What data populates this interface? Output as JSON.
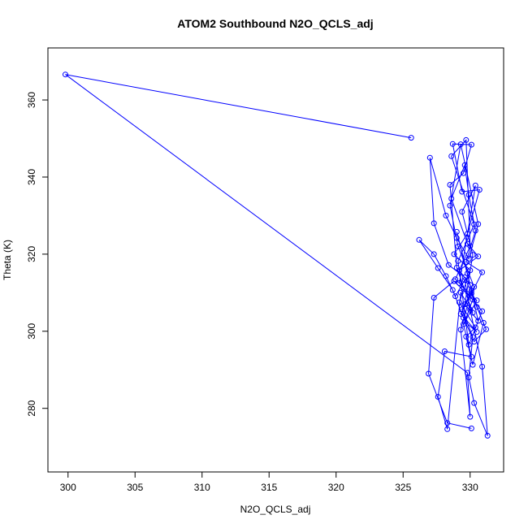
{
  "chart_data": {
    "type": "line",
    "title": "ATOM2 Southbound N2O_QCLS_adj",
    "xlabel": "N2O_QCLS_adj",
    "ylabel": "Theta (K)",
    "xlim": [
      298.5,
      332.5
    ],
    "ylim": [
      263.5,
      373.5
    ],
    "xticks": [
      300,
      305,
      310,
      315,
      320,
      325,
      330
    ],
    "yticks": [
      280,
      300,
      320,
      340,
      360
    ],
    "grid": false,
    "legend": "none",
    "series": [
      {
        "color": "#0000ff",
        "marker": "open-circle",
        "points": [
          [
            325.6,
            350.2
          ],
          [
            299.8,
            366.6
          ],
          [
            329.8,
            289.2
          ],
          [
            330.0,
            277.8
          ],
          [
            329.3,
            300.4
          ],
          [
            330.1,
            310.5
          ],
          [
            329.0,
            325.8
          ],
          [
            329.8,
            315.0
          ],
          [
            330.6,
            302.7
          ],
          [
            329.6,
            307.0
          ],
          [
            330.2,
            319.8
          ],
          [
            329.4,
            331.0
          ],
          [
            330.4,
            337.8
          ],
          [
            329.2,
            312.5
          ],
          [
            330.9,
            305.2
          ],
          [
            329.9,
            296.5
          ],
          [
            329.1,
            318.2
          ],
          [
            330.3,
            327.7
          ],
          [
            328.6,
            345.4
          ],
          [
            329.7,
            349.6
          ],
          [
            330.0,
            322.1
          ],
          [
            328.9,
            313.5
          ],
          [
            330.5,
            308.0
          ],
          [
            329.5,
            301.8
          ],
          [
            330.1,
            293.4
          ],
          [
            328.1,
            294.8
          ],
          [
            327.6,
            283.0
          ],
          [
            328.3,
            274.6
          ],
          [
            329.3,
            310.0
          ],
          [
            330.2,
            304.8
          ],
          [
            329.0,
            316.5
          ],
          [
            328.5,
            338.0
          ],
          [
            329.5,
            341.0
          ],
          [
            330.1,
            348.4
          ],
          [
            328.7,
            348.6
          ],
          [
            329.4,
            336.2
          ],
          [
            330.7,
            336.7
          ],
          [
            329.8,
            325.3
          ],
          [
            328.8,
            320.0
          ],
          [
            330.0,
            315.8
          ],
          [
            329.2,
            307.5
          ],
          [
            330.4,
            301.0
          ],
          [
            329.7,
            298.6
          ],
          [
            330.2,
            291.3
          ],
          [
            331.0,
            302.2
          ],
          [
            329.6,
            314.0
          ],
          [
            328.4,
            317.2
          ],
          [
            327.3,
            328.0
          ],
          [
            327.0,
            345.0
          ],
          [
            328.2,
            330.0
          ],
          [
            329.0,
            324.2
          ],
          [
            329.9,
            318.8
          ],
          [
            330.6,
            327.8
          ],
          [
            329.3,
            348.5
          ],
          [
            328.5,
            332.6
          ],
          [
            329.1,
            322.0
          ],
          [
            330.3,
            311.5
          ],
          [
            329.4,
            305.7
          ],
          [
            330.2,
            298.5
          ],
          [
            329.9,
            288.0
          ],
          [
            330.3,
            281.4
          ],
          [
            331.3,
            272.9
          ],
          [
            330.9,
            290.8
          ],
          [
            330.0,
            305.6
          ],
          [
            329.6,
            313.3
          ],
          [
            328.9,
            309.1
          ],
          [
            328.2,
            314.3
          ],
          [
            327.3,
            320.0
          ],
          [
            326.2,
            323.7
          ],
          [
            327.6,
            316.4
          ],
          [
            328.7,
            310.7
          ],
          [
            329.5,
            303.5
          ],
          [
            330.3,
            297.3
          ],
          [
            331.2,
            300.5
          ],
          [
            330.5,
            306.3
          ],
          [
            330.0,
            312.0
          ],
          [
            329.2,
            315.8
          ],
          [
            330.6,
            319.4
          ],
          [
            329.8,
            322.7
          ],
          [
            328.6,
            334.4
          ],
          [
            329.6,
            343.1
          ],
          [
            329.9,
            335.4
          ],
          [
            330.4,
            326.1
          ],
          [
            329.7,
            318.0
          ],
          [
            330.9,
            315.3
          ],
          [
            330.1,
            309.8
          ],
          [
            329.3,
            304.5
          ],
          [
            330.5,
            299.8
          ],
          [
            329.6,
            302.5
          ],
          [
            330.2,
            308.2
          ],
          [
            328.8,
            313.0
          ],
          [
            327.3,
            308.7
          ],
          [
            326.9,
            289.0
          ],
          [
            328.3,
            276.2
          ],
          [
            330.1,
            274.8
          ]
        ]
      }
    ]
  }
}
